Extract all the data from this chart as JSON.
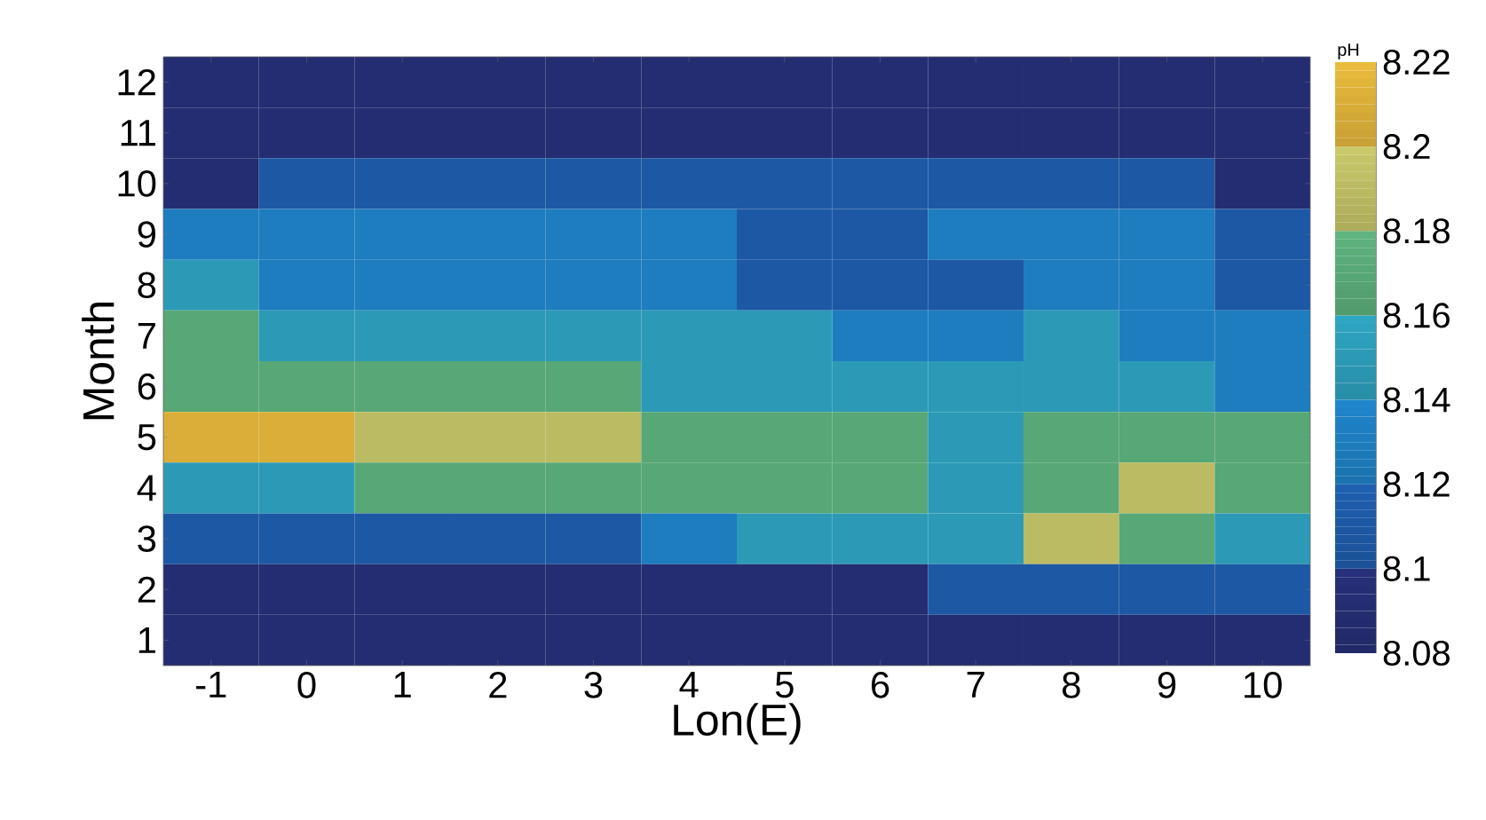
{
  "chart_data": {
    "type": "heatmap",
    "xlabel": "Lon(E)",
    "ylabel": "Month",
    "clabel": "pH",
    "categories": [
      "-1",
      "0",
      "1",
      "2",
      "3",
      "4",
      "5",
      "6",
      "7",
      "8",
      "9",
      "10"
    ],
    "y_categories": [
      "12",
      "11",
      "10",
      "9",
      "8",
      "7",
      "6",
      "5",
      "4",
      "3",
      "2",
      "1"
    ],
    "cells": [
      [
        8.09,
        8.09,
        8.09,
        8.09,
        8.09,
        8.09,
        8.09,
        8.09,
        8.09,
        8.09,
        8.09,
        8.09
      ],
      [
        8.09,
        8.09,
        8.09,
        8.09,
        8.09,
        8.09,
        8.09,
        8.09,
        8.09,
        8.09,
        8.09,
        8.09
      ],
      [
        8.09,
        8.11,
        8.11,
        8.11,
        8.11,
        8.11,
        8.11,
        8.11,
        8.11,
        8.11,
        8.11,
        8.09
      ],
      [
        8.13,
        8.13,
        8.13,
        8.13,
        8.13,
        8.13,
        8.11,
        8.11,
        8.13,
        8.13,
        8.13,
        8.11
      ],
      [
        8.15,
        8.13,
        8.13,
        8.13,
        8.13,
        8.13,
        8.11,
        8.11,
        8.11,
        8.13,
        8.13,
        8.11
      ],
      [
        8.17,
        8.15,
        8.15,
        8.15,
        8.15,
        8.15,
        8.15,
        8.13,
        8.13,
        8.15,
        8.13,
        8.13
      ],
      [
        8.17,
        8.17,
        8.17,
        8.17,
        8.17,
        8.15,
        8.15,
        8.15,
        8.15,
        8.15,
        8.15,
        8.13
      ],
      [
        8.21,
        8.21,
        8.19,
        8.19,
        8.19,
        8.17,
        8.17,
        8.17,
        8.15,
        8.17,
        8.17,
        8.17
      ],
      [
        8.15,
        8.15,
        8.17,
        8.17,
        8.17,
        8.17,
        8.17,
        8.17,
        8.15,
        8.17,
        8.19,
        8.17
      ],
      [
        8.11,
        8.11,
        8.11,
        8.11,
        8.11,
        8.13,
        8.15,
        8.15,
        8.15,
        8.19,
        8.17,
        8.15
      ],
      [
        8.09,
        8.09,
        8.09,
        8.09,
        8.09,
        8.09,
        8.09,
        8.09,
        8.11,
        8.11,
        8.11,
        8.11
      ],
      [
        8.09,
        8.09,
        8.09,
        8.09,
        8.09,
        8.09,
        8.09,
        8.09,
        8.09,
        8.09,
        8.09,
        8.09
      ]
    ],
    "clim": [
      8.08,
      8.22
    ],
    "cticks": [
      8.08,
      8.1,
      8.12,
      8.14,
      8.16,
      8.18,
      8.2,
      8.22
    ]
  }
}
